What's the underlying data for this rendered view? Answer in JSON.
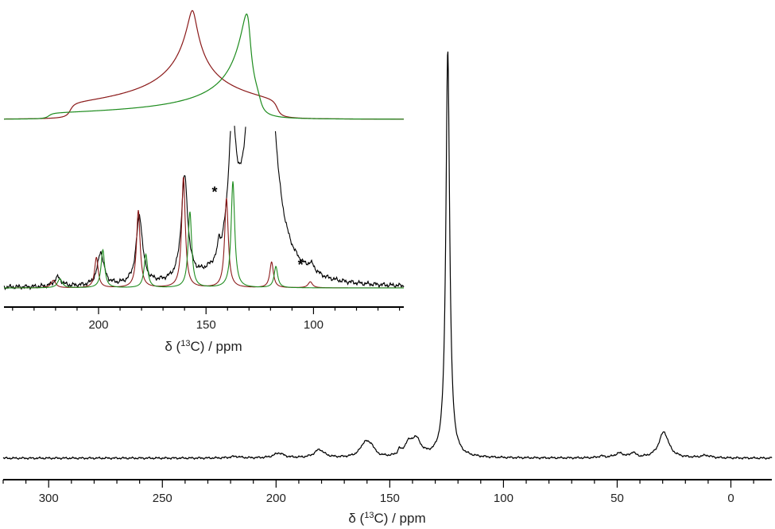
{
  "chart_data": [
    {
      "id": "main",
      "type": "line",
      "xlabel_prefix": "δ (",
      "xlabel_sup": "13",
      "xlabel_suffix": "C) / ppm",
      "xlim": [
        320,
        -18
      ],
      "x_reversed": true,
      "y_axis_shown": false,
      "xticks": [
        300,
        250,
        200,
        150,
        100,
        50,
        0
      ],
      "series": [
        {
          "color": "#000000",
          "peaks": [
            {
              "x": 124.5,
              "height": 1.0,
              "width": 1.0
            },
            {
              "x": 29.5,
              "height": 0.064,
              "width": 2.6
            },
            {
              "x": 138.5,
              "height": 0.042,
              "width": 2.6
            },
            {
              "x": 142.0,
              "height": 0.026,
              "width": 2.0
            },
            {
              "x": 145.8,
              "height": 0.013,
              "width": 0.7
            },
            {
              "x": 160.8,
              "height": 0.036,
              "width": 2.6
            },
            {
              "x": 158.0,
              "height": 0.018,
              "width": 1.6
            },
            {
              "x": 181.0,
              "height": 0.02,
              "width": 2.6
            },
            {
              "x": 198.8,
              "height": 0.012,
              "width": 2.6
            },
            {
              "x": 218.0,
              "height": 0.004,
              "width": 2.5
            },
            {
              "x": 49.0,
              "height": 0.011,
              "width": 2.5
            },
            {
              "x": 43.0,
              "height": 0.012,
              "width": 1.2
            },
            {
              "x": 57.0,
              "height": 0.004,
              "width": 1.5
            },
            {
              "x": 11.0,
              "height": 0.006,
              "width": 2.5
            }
          ]
        }
      ]
    },
    {
      "id": "inset",
      "type": "line",
      "xlabel_prefix": "δ (",
      "xlabel_sup": "13",
      "xlabel_suffix": "C) / ppm",
      "xlim": [
        244,
        58
      ],
      "x_reversed": true,
      "y_axis_shown": false,
      "xticks": [
        200,
        150,
        100
      ],
      "series": [
        {
          "color": "#000000",
          "clipped_top": true,
          "peaks": [
            {
              "x": 124.5,
              "height": 4.0,
              "width": 4.0
            },
            {
              "x": 137.8,
              "height": 0.83,
              "width": 2.2
            },
            {
              "x": 160.0,
              "height": 0.68,
              "width": 1.8
            },
            {
              "x": 181.0,
              "height": 0.45,
              "width": 1.8
            },
            {
              "x": 199.0,
              "height": 0.22,
              "width": 1.8
            },
            {
              "x": 219.0,
              "height": 0.06,
              "width": 2.0
            },
            {
              "x": 144.0,
              "height": 0.1,
              "width": 0.5
            },
            {
              "x": 101.0,
              "height": 0.05,
              "width": 2.0
            }
          ]
        },
        {
          "color": "#8b1a1a",
          "peaks": [
            {
              "x": 119.5,
              "height": 0.17,
              "width": 1.0
            },
            {
              "x": 140.5,
              "height": 0.59,
              "width": 1.0
            },
            {
              "x": 160.5,
              "height": 0.73,
              "width": 1.0
            },
            {
              "x": 181.5,
              "height": 0.51,
              "width": 1.0
            },
            {
              "x": 201.0,
              "height": 0.2,
              "width": 1.0
            },
            {
              "x": 221.0,
              "height": 0.05,
              "width": 1.3
            },
            {
              "x": 101.5,
              "height": 0.04,
              "width": 1.2
            }
          ]
        },
        {
          "color": "#1e8c1e",
          "peaks": [
            {
              "x": 117.5,
              "height": 0.14,
              "width": 1.0
            },
            {
              "x": 137.5,
              "height": 0.7,
              "width": 1.0
            },
            {
              "x": 157.5,
              "height": 0.5,
              "width": 1.0
            },
            {
              "x": 178.0,
              "height": 0.22,
              "width": 1.0
            },
            {
              "x": 198.0,
              "height": 0.25,
              "width": 1.0
            },
            {
              "x": 218.0,
              "height": 0.06,
              "width": 1.3
            }
          ]
        }
      ],
      "annotations": [
        {
          "text": "*",
          "x": 146,
          "y": 0.6
        },
        {
          "text": "*",
          "x": 106,
          "y": 0.12
        }
      ]
    },
    {
      "id": "powder",
      "type": "line",
      "x_reversed": true,
      "axes_shown": false,
      "series": [
        {
          "color": "#8b1a1a",
          "delta_11": 213,
          "delta_22": 156,
          "delta_33": 117,
          "height_scale": 0.93
        },
        {
          "color": "#1e8c1e",
          "delta_11": 223,
          "delta_22": 130,
          "delta_33": 125,
          "height_scale": 0.9
        }
      ]
    }
  ]
}
